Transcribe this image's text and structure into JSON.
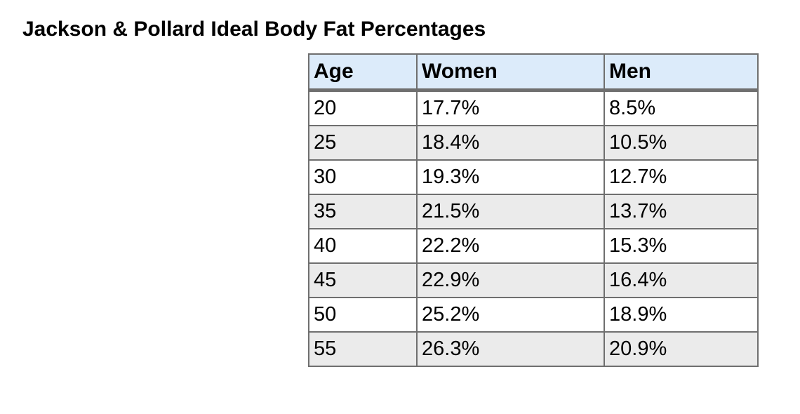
{
  "page": {
    "title": "Jackson & Pollard Ideal Body Fat Percentages"
  },
  "table": {
    "headers": {
      "age": "Age",
      "women": "Women",
      "men": "Men"
    },
    "rows": [
      {
        "age": "20",
        "women": "17.7%",
        "men": "8.5%"
      },
      {
        "age": "25",
        "women": "18.4%",
        "men": "10.5%"
      },
      {
        "age": "30",
        "women": "19.3%",
        "men": "12.7%"
      },
      {
        "age": "35",
        "women": "21.5%",
        "men": "13.7%"
      },
      {
        "age": "40",
        "women": "22.2%",
        "men": "15.3%"
      },
      {
        "age": "45",
        "women": "22.9%",
        "men": "16.4%"
      },
      {
        "age": "50",
        "women": "25.2%",
        "men": "18.9%"
      },
      {
        "age": "55",
        "women": "26.3%",
        "men": "20.9%"
      }
    ],
    "colors": {
      "header_background": "#dcebfa",
      "odd_row_background": "#ffffff",
      "even_row_background": "#ebebeb",
      "border": "#6f6f6f"
    }
  }
}
